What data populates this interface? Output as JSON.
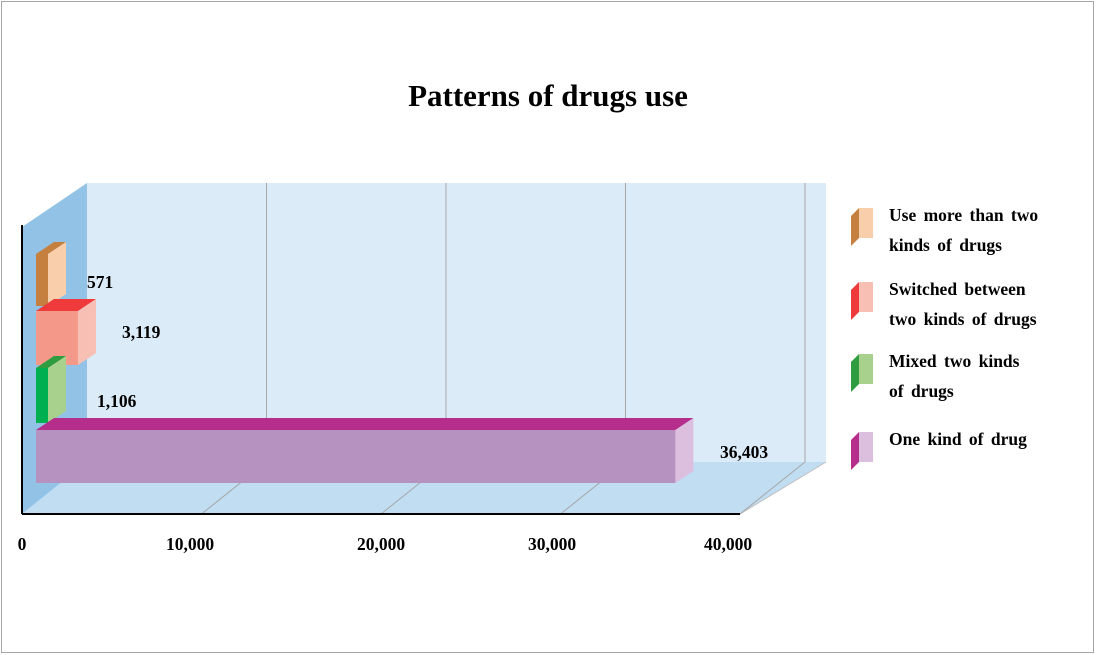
{
  "chart_data": {
    "type": "bar",
    "orientation": "horizontal",
    "title": "Patterns of drugs use",
    "xlim": [
      0,
      40000
    ],
    "x_ticks": [
      "0",
      "10,000",
      "20,000",
      "30,000",
      "40,000"
    ],
    "grid": true,
    "legend_position": "right",
    "series": [
      {
        "name": "Use more than two kinds of drugs",
        "value": 571,
        "label": "571",
        "color": "#f4b183",
        "top_color": "#c5803f"
      },
      {
        "name": "Switched between two kinds of drugs",
        "value": 3119,
        "label": "3,119",
        "color": "#f4998a",
        "top_color": "#ee3a3a"
      },
      {
        "name": "Mixed two kinds of drugs",
        "value": 1106,
        "label": "1,106",
        "color": "#00b050",
        "top_color": "#2f9c3f"
      },
      {
        "name": "One kind of drug",
        "value": 36403,
        "label": "36,403",
        "color": "#b692c0",
        "top_color": "#b62e8c"
      }
    ]
  },
  "legend": [
    {
      "lines": [
        "Use more than two",
        "kinds of drugs"
      ]
    },
    {
      "lines": [
        "Switched between",
        "two kinds of drugs"
      ]
    },
    {
      "lines": [
        "Mixed two kinds",
        "of drugs"
      ]
    },
    {
      "lines": [
        "One kind of drug"
      ]
    }
  ]
}
